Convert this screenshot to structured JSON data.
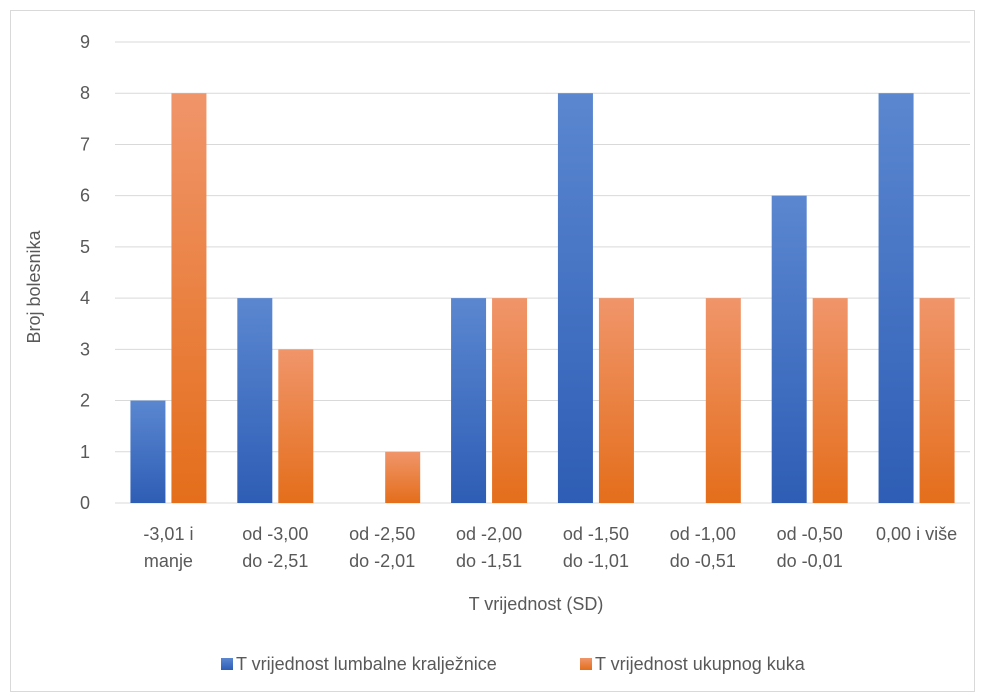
{
  "chart_data": {
    "type": "bar",
    "categories": [
      [
        "-3,01 i",
        "manje"
      ],
      [
        "od -3,00",
        "do -2,51"
      ],
      [
        "od -2,50",
        "do -2,01"
      ],
      [
        "od -2,00",
        "do -1,51"
      ],
      [
        "od -1,50",
        "do -1,01"
      ],
      [
        "od -1,00",
        "do -0,51"
      ],
      [
        "od -0,50",
        "do -0,01"
      ],
      [
        "0,00 i više"
      ]
    ],
    "series": [
      {
        "name": "T vrijednost lumbalne kralježnice",
        "values": [
          2,
          4,
          0,
          4,
          8,
          0,
          6,
          8
        ],
        "color": "#4472C4"
      },
      {
        "name": "T vrijednost ukupnog kuka",
        "values": [
          8,
          3,
          1,
          4,
          4,
          4,
          4,
          4
        ],
        "color": "#ED7D31"
      }
    ],
    "xlabel": "T vrijednost (SD)",
    "ylabel": "Broj bolesnika",
    "ylim": [
      0,
      9
    ],
    "yticks": [
      "0",
      "1",
      "2",
      "3",
      "4",
      "5",
      "6",
      "7",
      "8",
      "9"
    ],
    "grid": true,
    "legend_position": "bottom"
  }
}
